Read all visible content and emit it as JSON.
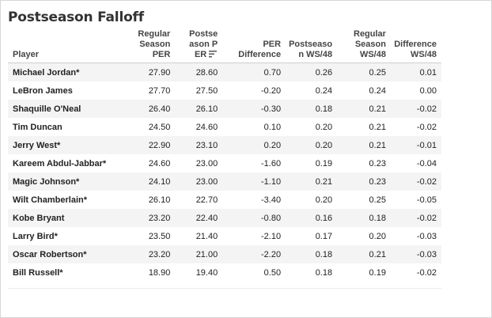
{
  "title": "Postseason Falloff",
  "columns": [
    "Player",
    "Regular\nSeason\nPER",
    "Postse\nason P\nER",
    "PER\nDifference",
    "Postseaso\nn WS/48",
    "Regular\nSeason\nWS/48",
    "Difference\nWS/48"
  ],
  "sorted_column_icon": "sort-descending-icon",
  "rows": [
    [
      "Michael Jordan*",
      "27.90",
      "28.60",
      "0.70",
      "0.26",
      "0.25",
      "0.01"
    ],
    [
      "LeBron James",
      "27.70",
      "27.50",
      "-0.20",
      "0.24",
      "0.24",
      "0.00"
    ],
    [
      "Shaquille O'Neal",
      "26.40",
      "26.10",
      "-0.30",
      "0.18",
      "0.21",
      "-0.02"
    ],
    [
      "Tim Duncan",
      "24.50",
      "24.60",
      "0.10",
      "0.20",
      "0.21",
      "-0.02"
    ],
    [
      "Jerry West*",
      "22.90",
      "23.10",
      "0.20",
      "0.20",
      "0.21",
      "-0.01"
    ],
    [
      "Kareem Abdul-Jabbar*",
      "24.60",
      "23.00",
      "-1.60",
      "0.19",
      "0.23",
      "-0.04"
    ],
    [
      "Magic Johnson*",
      "24.10",
      "23.00",
      "-1.10",
      "0.21",
      "0.23",
      "-0.02"
    ],
    [
      "Wilt Chamberlain*",
      "26.10",
      "22.70",
      "-3.40",
      "0.20",
      "0.25",
      "-0.05"
    ],
    [
      "Kobe Bryant",
      "23.20",
      "22.40",
      "-0.80",
      "0.16",
      "0.18",
      "-0.02"
    ],
    [
      "Larry Bird*",
      "23.50",
      "21.40",
      "-2.10",
      "0.17",
      "0.20",
      "-0.03"
    ],
    [
      "Oscar Robertson*",
      "23.20",
      "21.00",
      "-2.20",
      "0.18",
      "0.21",
      "-0.03"
    ],
    [
      "Bill Russell*",
      "18.90",
      "19.40",
      "0.50",
      "0.18",
      "0.19",
      "-0.02"
    ]
  ]
}
